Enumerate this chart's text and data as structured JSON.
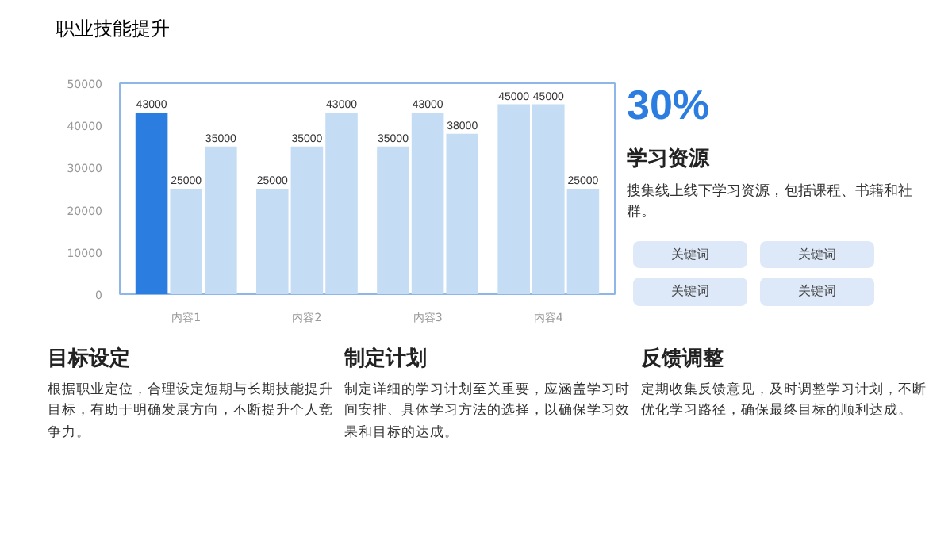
{
  "chart_data": [
    {
      "type": "bar",
      "title": "职业技能提升",
      "categories": [
        "内容1",
        "内容2",
        "内容3",
        "内容4"
      ],
      "series": [
        {
          "color": "#2b7de0",
          "colors": [
            "#2b7de0",
            "#c5dcf5",
            "#c5dcf5",
            "#c5dcf5"
          ],
          "values": [
            43000,
            25000,
            35000,
            45000
          ]
        },
        {
          "color": "#c5dcf5",
          "values": [
            25000,
            35000,
            43000,
            45000
          ]
        },
        {
          "color": "#c5dcf5",
          "values": [
            35000,
            43000,
            38000,
            25000
          ]
        }
      ],
      "ylim": [
        0,
        50000
      ],
      "yticks": [
        0,
        10000,
        20000,
        30000,
        40000,
        50000
      ],
      "grid": false,
      "data_labels": true
    },
    {
      "type": "other",
      "title": "学习资源",
      "annotations": [
        "30%",
        "搜集线上线下学习资源，包括课程、书籍和社群。",
        "关键词",
        "关键词",
        "关键词",
        "关键词"
      ]
    },
    {
      "type": "other",
      "title": "目标设定",
      "annotations": [
        "根据职业定位，合理设定短期与长期技能提升目标，有助于明确发展方向，不断提升个人竞争力。"
      ]
    },
    {
      "type": "other",
      "title": "制定计划",
      "annotations": [
        "制定详细的学习计划至关重要，应涵盖学习时间安排、具体学习方法的选择，以确保学习效果和目标的达成。"
      ]
    },
    {
      "type": "other",
      "title": "反馈调整",
      "annotations": [
        "定期收集反馈意见，及时调整学习计划，不断优化学习路径，确保最终目标的顺利达成。"
      ]
    }
  ]
}
